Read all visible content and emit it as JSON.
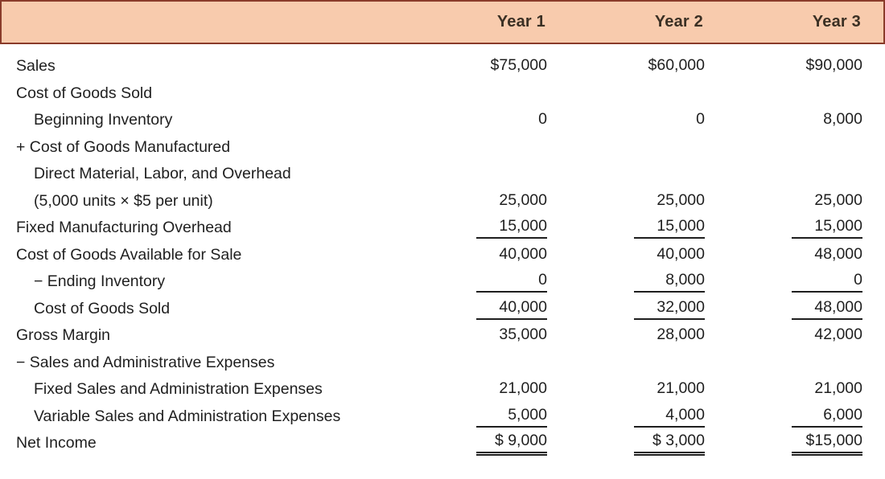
{
  "colors": {
    "header_bg": "#F8CBAD",
    "header_border": "#8A3B2A",
    "header_text": "#3B3024",
    "body_text": "#1F1F1F",
    "rule": "#1F1F1F"
  },
  "table": {
    "columns": [
      "Year 1",
      "Year 2",
      "Year 3"
    ],
    "rows": [
      {
        "label": "Sales",
        "indent": 0,
        "values": [
          "$75,000",
          "$60,000",
          "$90,000"
        ],
        "underline": "none"
      },
      {
        "label": "Cost of Goods Sold",
        "indent": 0,
        "values": [
          "",
          "",
          ""
        ],
        "underline": "none"
      },
      {
        "label": "Beginning Inventory",
        "indent": 1,
        "values": [
          "0",
          "0",
          "8,000"
        ],
        "underline": "none"
      },
      {
        "label": "+ Cost of Goods Manufactured",
        "indent": 0,
        "values": [
          "",
          "",
          ""
        ],
        "underline": "none"
      },
      {
        "label": "Direct Material, Labor, and Overhead",
        "indent": 1,
        "values": [
          "",
          "",
          ""
        ],
        "underline": "none"
      },
      {
        "label": "(5,000 units × $5 per unit)",
        "indent": 1,
        "values": [
          "25,000",
          "25,000",
          "25,000"
        ],
        "underline": "none"
      },
      {
        "label": "Fixed Manufacturing Overhead",
        "indent": 0,
        "values": [
          "15,000",
          "15,000",
          "15,000"
        ],
        "underline": "single"
      },
      {
        "label": "Cost of Goods Available for Sale",
        "indent": 0,
        "values": [
          "40,000",
          "40,000",
          "48,000"
        ],
        "underline": "none"
      },
      {
        "label": "− Ending Inventory",
        "indent": 1,
        "values": [
          "0",
          "8,000",
          "0"
        ],
        "underline": "single"
      },
      {
        "label": "Cost of Goods Sold",
        "indent": 1,
        "values": [
          "40,000",
          "32,000",
          "48,000"
        ],
        "underline": "single"
      },
      {
        "label": "Gross Margin",
        "indent": 0,
        "values": [
          "35,000",
          "28,000",
          "42,000"
        ],
        "underline": "none"
      },
      {
        "label": "− Sales and Administrative Expenses",
        "indent": 0,
        "values": [
          "",
          "",
          ""
        ],
        "underline": "none"
      },
      {
        "label": "Fixed Sales and Administration Expenses",
        "indent": 1,
        "values": [
          "21,000",
          "21,000",
          "21,000"
        ],
        "underline": "none"
      },
      {
        "label": "Variable Sales and Administration Expenses",
        "indent": 1,
        "values": [
          "5,000",
          "4,000",
          "6,000"
        ],
        "underline": "single"
      },
      {
        "label": "Net Income",
        "indent": 0,
        "values": [
          "$ 9,000",
          "$ 3,000",
          "$15,000"
        ],
        "underline": "double"
      }
    ]
  }
}
